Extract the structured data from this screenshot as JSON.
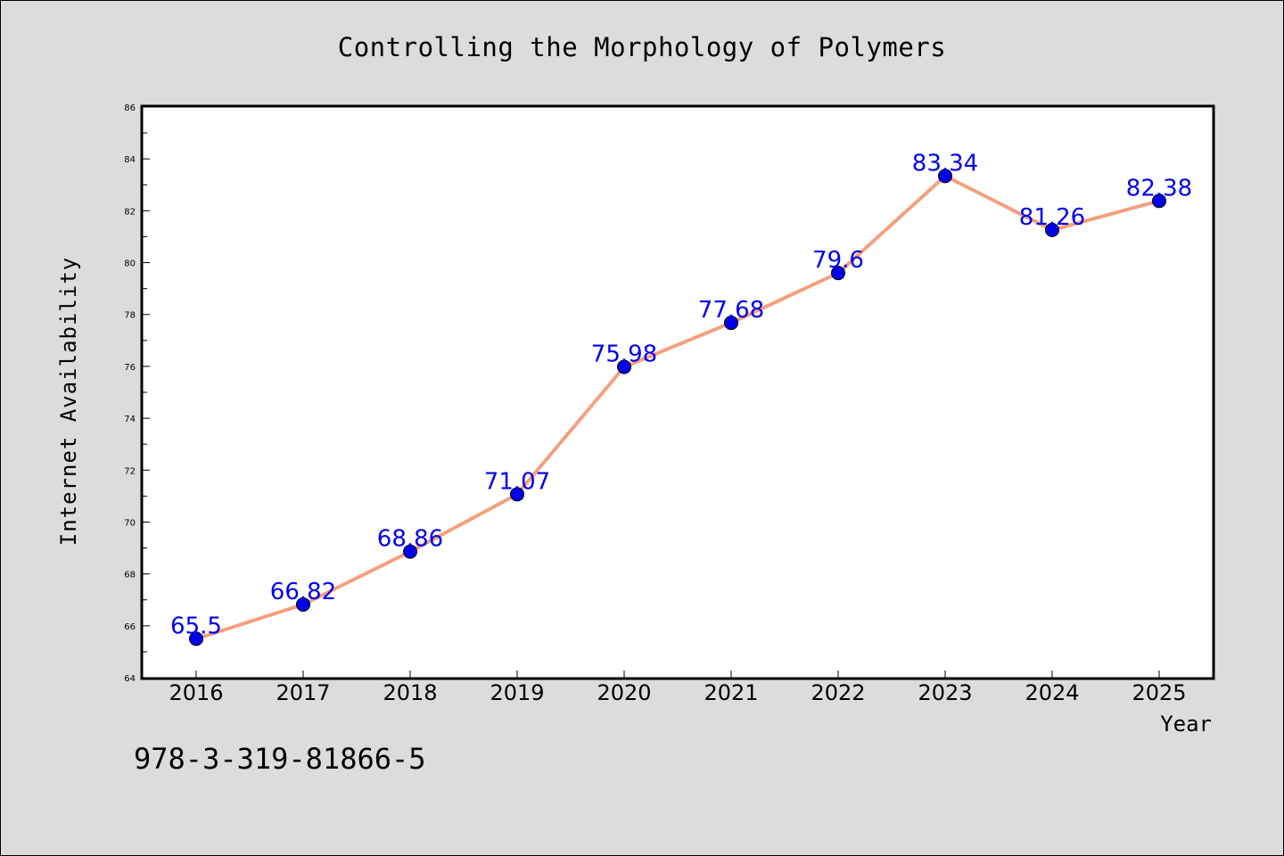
{
  "chart_data": {
    "type": "line",
    "title": "Controlling the Morphology of Polymers",
    "xlabel": "Year",
    "ylabel": "Internet Availability",
    "categories": [
      "2016",
      "2017",
      "2018",
      "2019",
      "2020",
      "2021",
      "2022",
      "2023",
      "2024",
      "2025"
    ],
    "series": [
      {
        "values": [
          65.5,
          66.82,
          68.86,
          71.07,
          75.98,
          77.68,
          79.6,
          83.34,
          81.26,
          82.38
        ],
        "line_color": "#f4a07e",
        "marker_color": "#0000ee",
        "label_color": "#0000ee"
      }
    ],
    "ylim": [
      64,
      86
    ],
    "yticks": [
      "64",
      "66",
      "68",
      "70",
      "72",
      "74",
      "76",
      "78",
      "80",
      "82",
      "84",
      "86"
    ],
    "grid": false,
    "legend": "none"
  },
  "footer_note": "978-3-319-81866-5",
  "colors": {
    "background": "#dcdcdc",
    "plot_background": "#ffffff"
  }
}
